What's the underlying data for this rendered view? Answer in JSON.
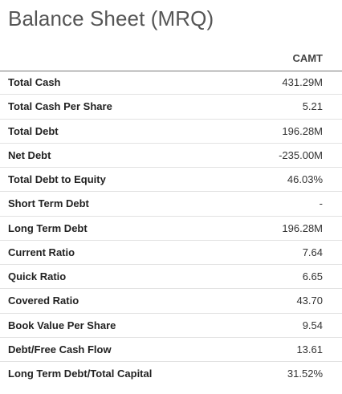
{
  "title": "Balance Sheet (MRQ)",
  "column_header": "CAMT",
  "rows": [
    {
      "label": "Total Cash",
      "value": "431.29M"
    },
    {
      "label": "Total Cash Per Share",
      "value": "5.21"
    },
    {
      "label": "Total Debt",
      "value": "196.28M"
    },
    {
      "label": "Net Debt",
      "value": "-235.00M"
    },
    {
      "label": "Total Debt to Equity",
      "value": "46.03%"
    },
    {
      "label": "Short Term Debt",
      "value": "-"
    },
    {
      "label": "Long Term Debt",
      "value": "196.28M"
    },
    {
      "label": "Current Ratio",
      "value": "7.64"
    },
    {
      "label": "Quick Ratio",
      "value": "6.65"
    },
    {
      "label": "Covered Ratio",
      "value": "43.70"
    },
    {
      "label": "Book Value Per Share",
      "value": "9.54"
    },
    {
      "label": "Debt/Free Cash Flow",
      "value": "13.61"
    },
    {
      "label": "Long Term Debt/Total Capital",
      "value": "31.52%"
    }
  ]
}
